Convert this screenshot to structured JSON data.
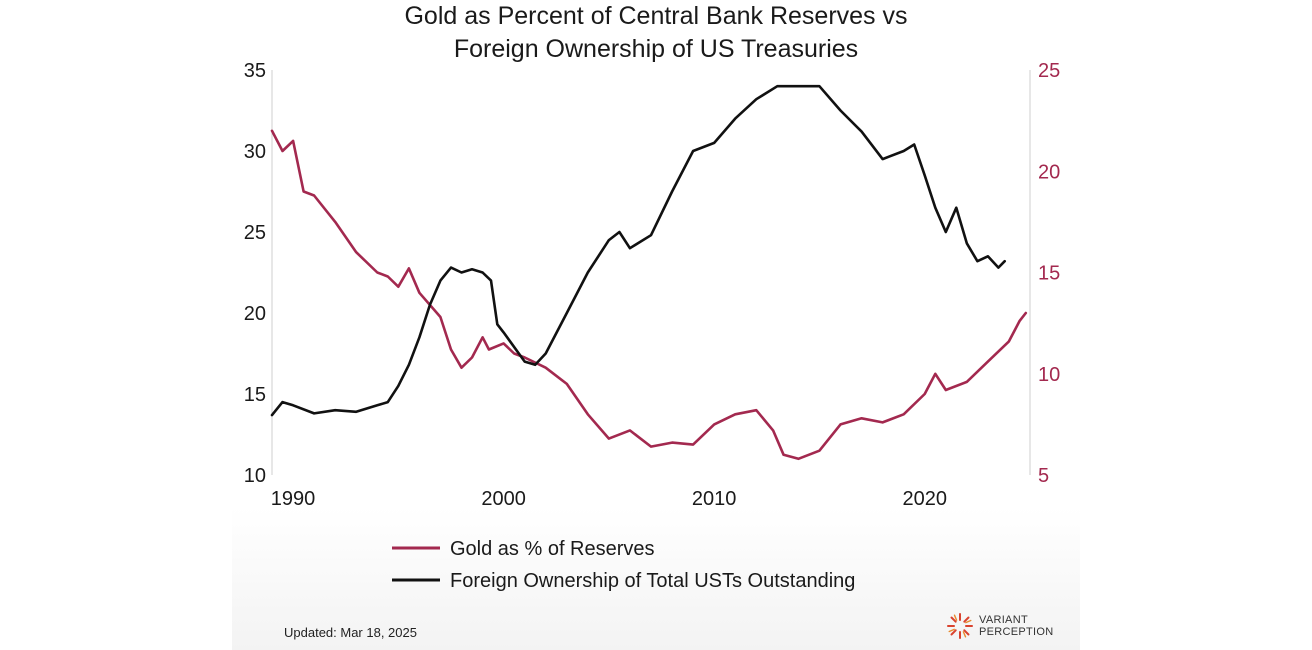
{
  "chart_data": {
    "type": "line",
    "title": [
      "Gold as Percent of Central Bank Reserves vs",
      "Foreign Ownership of US Treasuries"
    ],
    "x_ticks": [
      "1990",
      "2000",
      "2010",
      "2020"
    ],
    "left_axis": {
      "ylim": [
        10,
        35
      ],
      "ticks": [
        "10",
        "15",
        "20",
        "25",
        "30",
        "35"
      ]
    },
    "right_axis": {
      "ylim": [
        5,
        25
      ],
      "ticks": [
        "5",
        "10",
        "15",
        "20",
        "25"
      ]
    },
    "xlim": [
      1989,
      2025
    ],
    "grid": false,
    "legend_placement": "bottom",
    "colors": {
      "gold": "#a3294f",
      "foreign": "#111111"
    },
    "series": [
      {
        "name": "Gold as % of Reserves",
        "axis": "right",
        "x": [
          1989.0,
          1989.5,
          1990.0,
          1990.5,
          1991.0,
          1992.0,
          1993.0,
          1994.0,
          1994.5,
          1995.0,
          1995.5,
          1996.0,
          1997.0,
          1997.5,
          1998.0,
          1998.5,
          1999.0,
          1999.3,
          2000.0,
          2000.5,
          2001.0,
          2002.0,
          2003.0,
          2004.0,
          2005.0,
          2006.0,
          2007.0,
          2008.0,
          2009.0,
          2010.0,
          2011.0,
          2012.0,
          2012.8,
          2013.3,
          2014.0,
          2015.0,
          2016.0,
          2017.0,
          2018.0,
          2019.0,
          2020.0,
          2020.5,
          2021.0,
          2022.0,
          2023.0,
          2024.0,
          2024.5,
          2024.8
        ],
        "values": [
          22.0,
          21.0,
          21.5,
          19.0,
          18.8,
          17.5,
          16.0,
          15.0,
          14.8,
          14.3,
          15.2,
          14.0,
          12.8,
          11.2,
          10.3,
          10.8,
          11.8,
          11.2,
          11.5,
          11.0,
          10.8,
          10.3,
          9.5,
          8.0,
          6.8,
          7.2,
          6.4,
          6.6,
          6.5,
          7.5,
          8.0,
          8.2,
          7.2,
          6.0,
          5.8,
          6.2,
          7.5,
          7.8,
          7.6,
          8.0,
          9.0,
          10.0,
          9.2,
          9.6,
          10.6,
          11.6,
          12.6,
          13.0
        ]
      },
      {
        "name": "Foreign Ownership of Total USTs Outstanding",
        "axis": "left",
        "x": [
          1989.0,
          1989.5,
          1990.0,
          1991.0,
          1992.0,
          1993.0,
          1994.0,
          1994.5,
          1995.0,
          1995.5,
          1996.0,
          1996.5,
          1997.0,
          1997.5,
          1998.0,
          1998.5,
          1999.0,
          1999.4,
          1999.7,
          2000.0,
          2001.0,
          2001.5,
          2002.0,
          2003.0,
          2004.0,
          2005.0,
          2005.5,
          2006.0,
          2007.0,
          2008.0,
          2009.0,
          2010.0,
          2011.0,
          2012.0,
          2013.0,
          2014.0,
          2015.0,
          2016.0,
          2017.0,
          2018.0,
          2019.0,
          2019.5,
          2020.0,
          2020.5,
          2021.0,
          2021.5,
          2022.0,
          2022.5,
          2023.0,
          2023.5,
          2023.8
        ],
        "values": [
          13.7,
          14.5,
          14.3,
          13.8,
          14.0,
          13.9,
          14.3,
          14.5,
          15.5,
          16.8,
          18.5,
          20.5,
          22.0,
          22.8,
          22.5,
          22.7,
          22.5,
          22.0,
          19.3,
          18.8,
          17.0,
          16.8,
          17.5,
          20.0,
          22.5,
          24.5,
          25.0,
          24.0,
          24.8,
          27.5,
          30.0,
          30.5,
          32.0,
          33.2,
          34.0,
          34.0,
          34.0,
          32.5,
          31.2,
          29.5,
          30.0,
          30.4,
          28.5,
          26.5,
          25.0,
          26.5,
          24.3,
          23.2,
          23.5,
          22.8,
          23.2
        ]
      }
    ]
  },
  "footer": {
    "updated": "Updated: Mar 18, 2025",
    "logo_line1": "VARIANT",
    "logo_line2": "PERCEPTION"
  }
}
